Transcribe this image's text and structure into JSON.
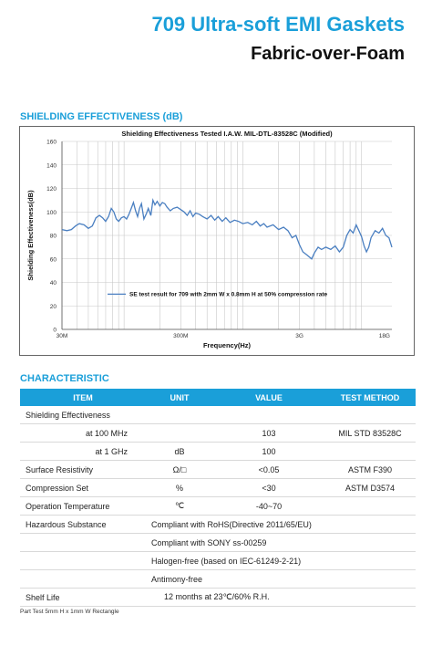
{
  "header": {
    "title": "709 Ultra-soft EMI Gaskets",
    "subtitle": "Fabric-over-Foam"
  },
  "sections": {
    "shielding": "SHIELDING EFFECTIVENESS (dB)",
    "characteristic": "CHARACTERISTIC"
  },
  "chart_data": {
    "type": "line",
    "title": "Shielding Effectiveness Tested I.A.W. MIL-DTL-83528C (Modified)",
    "xlabel": "Frequency(Hz)",
    "ylabel": "Shielding Effectiveness(dB)",
    "x_scale": "log",
    "xlim_hz": [
      30000000,
      18000000000
    ],
    "x_ticks": [
      {
        "label": "30M",
        "hz": 30000000
      },
      {
        "label": "300M",
        "hz": 300000000
      },
      {
        "label": "3G",
        "hz": 3000000000
      },
      {
        "label": "18G",
        "hz": 18000000000
      }
    ],
    "ylim": [
      0,
      160
    ],
    "y_ticks": [
      0,
      20,
      40,
      60,
      80,
      100,
      120,
      140,
      160
    ],
    "grid": true,
    "legend": "center-left",
    "series": [
      {
        "name": "SE test result for 709 with 2mm W x 0.8mm H at 50% compression rate",
        "color": "#4a7fc1",
        "points": [
          [
            30000000,
            85
          ],
          [
            33000000,
            84
          ],
          [
            36000000,
            85
          ],
          [
            39000000,
            88
          ],
          [
            42000000,
            90
          ],
          [
            46000000,
            89
          ],
          [
            50000000,
            86
          ],
          [
            54000000,
            88
          ],
          [
            58000000,
            95
          ],
          [
            62000000,
            97
          ],
          [
            66000000,
            95
          ],
          [
            70000000,
            92
          ],
          [
            74000000,
            96
          ],
          [
            78000000,
            103
          ],
          [
            82000000,
            100
          ],
          [
            86000000,
            94
          ],
          [
            90000000,
            92
          ],
          [
            95000000,
            95
          ],
          [
            100000000,
            96
          ],
          [
            105000000,
            94
          ],
          [
            110000000,
            98
          ],
          [
            116000000,
            104
          ],
          [
            120000000,
            108
          ],
          [
            125000000,
            101
          ],
          [
            130000000,
            96
          ],
          [
            135000000,
            103
          ],
          [
            140000000,
            107
          ],
          [
            147000000,
            94
          ],
          [
            155000000,
            99
          ],
          [
            160000000,
            103
          ],
          [
            168000000,
            97
          ],
          [
            175000000,
            110
          ],
          [
            182000000,
            106
          ],
          [
            190000000,
            109
          ],
          [
            200000000,
            105
          ],
          [
            210000000,
            108
          ],
          [
            220000000,
            107
          ],
          [
            230000000,
            104
          ],
          [
            245000000,
            101
          ],
          [
            260000000,
            103
          ],
          [
            280000000,
            104
          ],
          [
            300000000,
            102
          ],
          [
            320000000,
            100
          ],
          [
            340000000,
            97
          ],
          [
            360000000,
            101
          ],
          [
            380000000,
            96
          ],
          [
            400000000,
            99
          ],
          [
            430000000,
            98
          ],
          [
            460000000,
            96
          ],
          [
            500000000,
            94
          ],
          [
            540000000,
            97
          ],
          [
            580000000,
            93
          ],
          [
            620000000,
            96
          ],
          [
            670000000,
            92
          ],
          [
            720000000,
            95
          ],
          [
            780000000,
            91
          ],
          [
            850000000,
            93
          ],
          [
            920000000,
            92
          ],
          [
            1000000000,
            90
          ],
          [
            1100000000,
            91
          ],
          [
            1200000000,
            89
          ],
          [
            1300000000,
            92
          ],
          [
            1400000000,
            88
          ],
          [
            1500000000,
            90
          ],
          [
            1600000000,
            87
          ],
          [
            1800000000,
            89
          ],
          [
            2000000000,
            85
          ],
          [
            2200000000,
            87
          ],
          [
            2400000000,
            84
          ],
          [
            2600000000,
            78
          ],
          [
            2800000000,
            80
          ],
          [
            3000000000,
            72
          ],
          [
            3200000000,
            66
          ],
          [
            3500000000,
            63
          ],
          [
            3800000000,
            60
          ],
          [
            4000000000,
            65
          ],
          [
            4300000000,
            70
          ],
          [
            4600000000,
            68
          ],
          [
            5000000000,
            70
          ],
          [
            5500000000,
            68
          ],
          [
            6000000000,
            71
          ],
          [
            6500000000,
            66
          ],
          [
            7000000000,
            70
          ],
          [
            7500000000,
            80
          ],
          [
            8000000000,
            85
          ],
          [
            8500000000,
            82
          ],
          [
            9000000000,
            89
          ],
          [
            9500000000,
            84
          ],
          [
            10000000000,
            79
          ],
          [
            10500000000,
            71
          ],
          [
            11000000000,
            66
          ],
          [
            11500000000,
            70
          ],
          [
            12000000000,
            78
          ],
          [
            13000000000,
            84
          ],
          [
            14000000000,
            82
          ],
          [
            15000000000,
            86
          ],
          [
            16000000000,
            80
          ],
          [
            17000000000,
            78
          ],
          [
            18000000000,
            70
          ]
        ]
      }
    ]
  },
  "table": {
    "headers": [
      "ITEM",
      "UNIT",
      "VALUE",
      "TEST METHOD"
    ],
    "rows": [
      {
        "item": "Shielding Effectiveness",
        "unit": "",
        "value": "",
        "method": "",
        "indent": false
      },
      {
        "item": "at 100 MHz",
        "unit": "",
        "value": "103",
        "method": "MIL STD 83528C",
        "indent": true
      },
      {
        "item": "at 1 GHz",
        "unit": "dB",
        "value": "100",
        "method": "",
        "indent": true
      },
      {
        "item": "Surface Resistivity",
        "unit": "Ω/□",
        "value": "<0.05",
        "method": "ASTM F390",
        "indent": false
      },
      {
        "item": "Compression Set",
        "unit": "%",
        "value": "<30",
        "method": "ASTM D3574",
        "indent": false
      },
      {
        "item": "Operation Temperature",
        "unit": "℃",
        "value": "-40~70",
        "method": "",
        "indent": false
      },
      {
        "item": "Hazardous Substance",
        "span": "Compliant with RoHS(Directive 2011/65/EU)"
      },
      {
        "item": "",
        "span": "Compliant with SONY ss-00259"
      },
      {
        "item": "",
        "span": "Halogen-free (based on IEC-61249-2-21)"
      },
      {
        "item": "",
        "span": "Antimony-free"
      },
      {
        "item": "Shelf Life",
        "span": "12 months at 23℃/60% R.H.",
        "span_center": true
      }
    ]
  },
  "footnote": "Part Test 5mm H  x 1mm W Rectangle"
}
